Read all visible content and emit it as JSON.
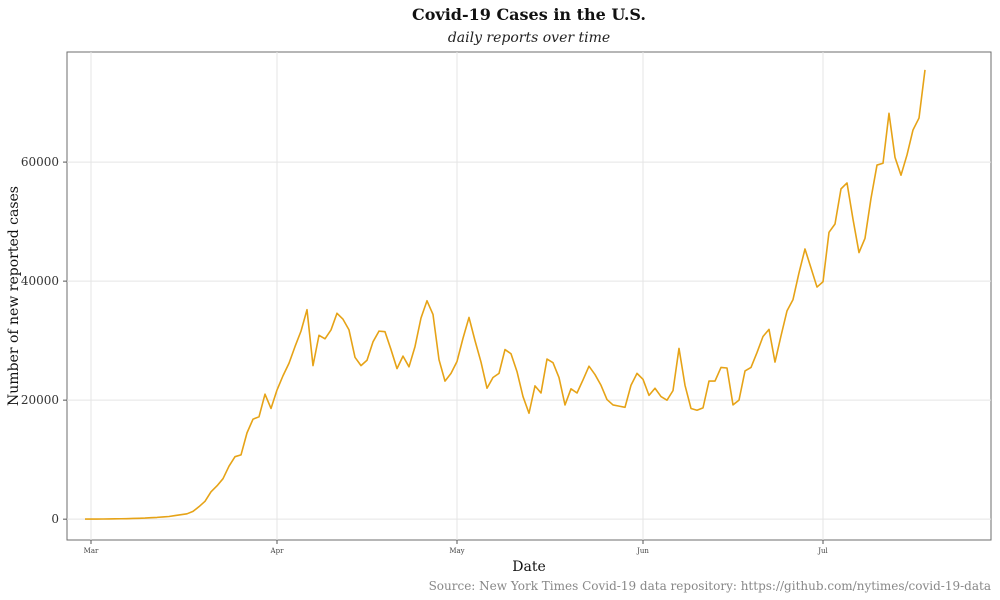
{
  "chart_data": {
    "type": "line",
    "title": "Covid-19 Cases in the U.S.",
    "subtitle": "daily reports over time",
    "xlabel": "Date",
    "ylabel": "Number of new reported cases",
    "caption": "Source: New York Times Covid-19 data repository: https://github.com/nytimes/covid-19-data",
    "line_color": "#E6A317",
    "grid": true,
    "x_start": "2020-02-29",
    "xlim": [
      "2020-02-26",
      "2020-07-29"
    ],
    "ylim": [
      -3500,
      78500
    ],
    "x_ticks": [
      {
        "label": "Mar",
        "date": "2020-03-01"
      },
      {
        "label": "Apr",
        "date": "2020-04-01"
      },
      {
        "label": "May",
        "date": "2020-05-01"
      },
      {
        "label": "Jun",
        "date": "2020-06-01"
      },
      {
        "label": "Jul",
        "date": "2020-07-01"
      }
    ],
    "y_ticks": [
      {
        "label": "0",
        "value": 0
      },
      {
        "label": "20000",
        "value": 20000
      },
      {
        "label": "40000",
        "value": 40000
      },
      {
        "label": "60000",
        "value": 60000
      }
    ],
    "series": [
      {
        "values": [
          20,
          18,
          25,
          30,
          40,
          55,
          70,
          90,
          120,
          150,
          180,
          250,
          300,
          380,
          450,
          600,
          750,
          900,
          1300,
          2100,
          3000,
          4600,
          5600,
          6800,
          8900,
          10500,
          10800,
          14500,
          16800,
          17200,
          21000,
          18600,
          21700,
          24100,
          26200,
          29000,
          31600,
          35200,
          25800,
          30900,
          30300,
          31800,
          34600,
          33600,
          31800,
          27200,
          25800,
          26700,
          29800,
          31600,
          31500,
          28500,
          25300,
          27400,
          25600,
          29000,
          33800,
          36700,
          34400,
          26800,
          23200,
          24500,
          26500,
          30400,
          33900,
          30000,
          26400,
          22000,
          23800,
          24500,
          28500,
          27800,
          24800,
          20600,
          17800,
          22400,
          21200,
          26900,
          26300,
          23800,
          19200,
          21900,
          21200,
          23400,
          25700,
          24300,
          22500,
          20100,
          19200,
          19000,
          18800,
          22500,
          24500,
          23500,
          20800,
          22000,
          20600,
          20000,
          21600,
          28700,
          22500,
          18600,
          18300,
          18700,
          23200,
          23200,
          25500,
          25400,
          19200,
          20000,
          24900,
          25500,
          28000,
          30700,
          31900,
          26400,
          30800,
          35000,
          36900,
          41400,
          45400,
          42200,
          39000,
          39900,
          48200,
          49600,
          55500,
          56500,
          50400,
          44800,
          47200,
          53900,
          59500,
          59800,
          68200,
          60800,
          57800,
          61200,
          65400,
          67400,
          75500
        ]
      }
    ]
  }
}
